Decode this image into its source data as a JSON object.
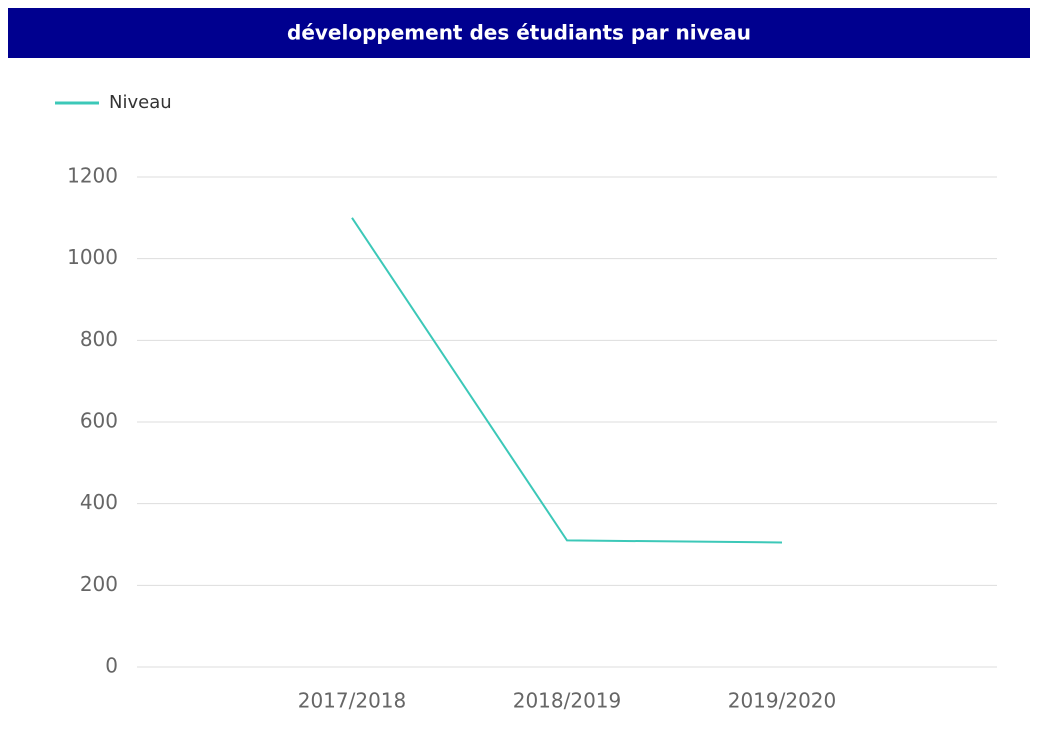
{
  "chart_data": {
    "type": "line",
    "title": "développement des étudiants par niveau",
    "categories": [
      "2017/2018",
      "2018/2019",
      "2019/2020"
    ],
    "series": [
      {
        "name": "Niveau",
        "color": "#3cc8b8",
        "values": [
          1100,
          310,
          305
        ]
      }
    ],
    "ylim": [
      0,
      1200
    ],
    "yticks": [
      0,
      200,
      400,
      600,
      800,
      1000,
      1200
    ],
    "grid": true,
    "legend": "top-left"
  }
}
